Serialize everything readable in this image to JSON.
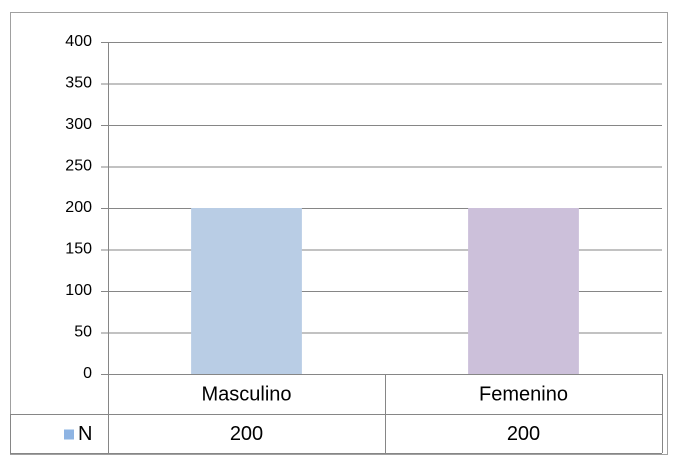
{
  "chart_data": {
    "type": "bar",
    "categories": [
      "Masculino",
      "Femenino"
    ],
    "series": [
      {
        "name": "N",
        "color": "#8eb4e3",
        "values": [
          200,
          200
        ]
      }
    ],
    "point_colors": [
      "#b9cde5",
      "#ccc0da"
    ],
    "ylim": [
      0,
      400
    ],
    "yticks": [
      0,
      50,
      100,
      150,
      200,
      250,
      300,
      350,
      400
    ],
    "grid": true,
    "data_table": true
  }
}
